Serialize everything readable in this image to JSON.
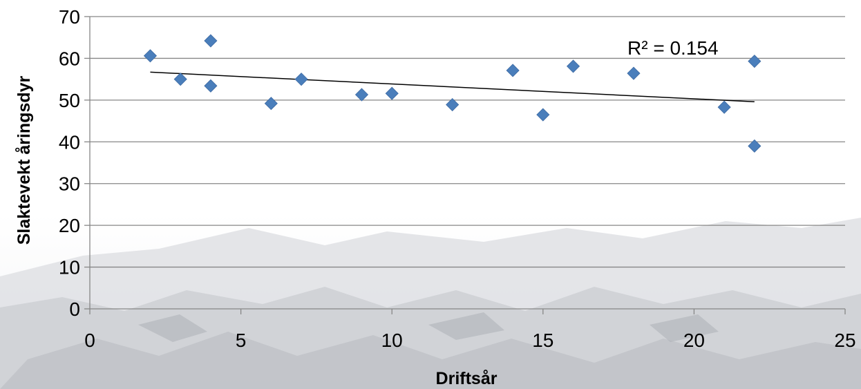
{
  "chart_data": {
    "type": "scatter",
    "xlabel": "Driftsår",
    "ylabel": "Slaktevekt åringsdyr",
    "xlim": [
      0,
      25
    ],
    "ylim": [
      0,
      70
    ],
    "xticks": [
      0,
      5,
      10,
      15,
      20,
      25
    ],
    "yticks": [
      0,
      10,
      20,
      30,
      40,
      50,
      60,
      70
    ],
    "grid": "horizontal",
    "marker": "diamond",
    "marker_color": "#4a7ebb",
    "series": [
      {
        "points": [
          {
            "x": 2,
            "y": 60.6
          },
          {
            "x": 3,
            "y": 55.0
          },
          {
            "x": 4,
            "y": 64.2
          },
          {
            "x": 4,
            "y": 53.4
          },
          {
            "x": 6,
            "y": 49.2
          },
          {
            "x": 7,
            "y": 55.0
          },
          {
            "x": 9,
            "y": 51.3
          },
          {
            "x": 10,
            "y": 51.6
          },
          {
            "x": 12,
            "y": 48.9
          },
          {
            "x": 14,
            "y": 57.1
          },
          {
            "x": 15,
            "y": 46.5
          },
          {
            "x": 16,
            "y": 58.1
          },
          {
            "x": 18,
            "y": 56.4
          },
          {
            "x": 21,
            "y": 48.3
          },
          {
            "x": 22,
            "y": 59.3
          },
          {
            "x": 22,
            "y": 39.0
          }
        ]
      }
    ],
    "trendline": {
      "type": "linear",
      "from": {
        "x": 2,
        "y": 56.7
      },
      "to": {
        "x": 22,
        "y": 49.6
      },
      "label": "R² = 0.154"
    }
  }
}
